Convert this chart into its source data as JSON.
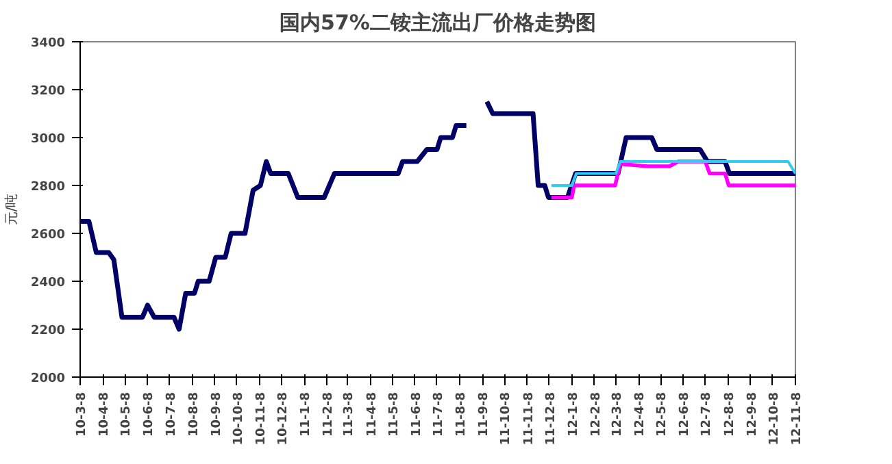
{
  "chart_data": {
    "type": "line",
    "title": "国内57%二铵主流出厂价格走势图",
    "ylabel": "元/吨",
    "xlim": [
      "2010-03-08",
      "2012-11-08"
    ],
    "xticks": [
      {
        "value": "2010-03-08",
        "label": "10-3-8"
      },
      {
        "value": "2010-04-08",
        "label": "10-4-8"
      },
      {
        "value": "2010-05-08",
        "label": "10-5-8"
      },
      {
        "value": "2010-06-08",
        "label": "10-6-8"
      },
      {
        "value": "2010-07-08",
        "label": "10-7-8"
      },
      {
        "value": "2010-08-08",
        "label": "10-8-8"
      },
      {
        "value": "2010-09-08",
        "label": "10-9-8"
      },
      {
        "value": "2010-10-08",
        "label": "10-10-8"
      },
      {
        "value": "2010-11-08",
        "label": "10-11-8"
      },
      {
        "value": "2010-12-08",
        "label": "10-12-8"
      },
      {
        "value": "2011-01-08",
        "label": "11-1-8"
      },
      {
        "value": "2011-02-08",
        "label": "11-2-8"
      },
      {
        "value": "2011-03-08",
        "label": "11-3-8"
      },
      {
        "value": "2011-04-08",
        "label": "11-4-8"
      },
      {
        "value": "2011-05-08",
        "label": "11-5-8"
      },
      {
        "value": "2011-06-08",
        "label": "11-6-8"
      },
      {
        "value": "2011-07-08",
        "label": "11-7-8"
      },
      {
        "value": "2011-08-08",
        "label": "11-8-8"
      },
      {
        "value": "2011-09-08",
        "label": "11-9-8"
      },
      {
        "value": "2011-10-08",
        "label": "11-10-8"
      },
      {
        "value": "2011-11-08",
        "label": "11-11-8"
      },
      {
        "value": "2011-12-08",
        "label": "11-12-8"
      },
      {
        "value": "2012-01-08",
        "label": "12-1-8"
      },
      {
        "value": "2012-02-08",
        "label": "12-2-8"
      },
      {
        "value": "2012-03-08",
        "label": "12-3-8"
      },
      {
        "value": "2012-04-08",
        "label": "12-4-8"
      },
      {
        "value": "2012-05-08",
        "label": "12-5-8"
      },
      {
        "value": "2012-06-08",
        "label": "12-6-8"
      },
      {
        "value": "2012-07-08",
        "label": "12-7-8"
      },
      {
        "value": "2012-08-08",
        "label": "12-8-8"
      },
      {
        "value": "2012-09-08",
        "label": "12-9-8"
      },
      {
        "value": "2012-10-08",
        "label": "12-10-8"
      },
      {
        "value": "2012-11-08",
        "label": "12-11-8"
      }
    ],
    "ylim": [
      2000,
      3400
    ],
    "yticks": [
      2000,
      2200,
      2400,
      2600,
      2800,
      3000,
      3200,
      3400
    ],
    "grid": false,
    "line_style": "solid",
    "marker": "none",
    "series": [
      {
        "color": "#000066",
        "x": [
          "2010-03-08",
          "2010-03-20",
          "2010-03-30",
          "2010-04-16",
          "2010-04-23",
          "2010-05-04",
          "2010-06-01",
          "2010-06-08",
          "2010-06-17",
          "2010-07-14",
          "2010-07-21",
          "2010-07-30",
          "2010-08-11",
          "2010-08-16",
          "2010-08-31",
          "2010-09-09",
          "2010-09-22",
          "2010-09-30",
          "2010-10-19",
          "2010-10-30",
          "2010-11-09",
          "2010-11-17",
          "2010-11-23",
          "2010-12-17",
          "2010-12-30",
          "2011-02-04",
          "2011-02-18",
          "2011-05-16",
          "2011-05-22",
          "2011-06-11",
          "2011-06-24",
          "2011-07-08",
          "2011-07-13",
          "2011-07-29",
          "2011-08-03",
          "2011-08-17",
          "2011-09-01",
          "2011-09-14",
          "2011-09-22",
          "2011-11-16",
          "2011-11-23",
          "2011-12-02",
          "2011-12-07",
          "2012-01-02",
          "2012-01-13",
          "2012-03-11",
          "2012-03-22",
          "2012-04-26",
          "2012-05-03",
          "2012-07-01",
          "2012-07-11",
          "2012-08-04",
          "2012-08-10",
          "2012-11-08"
        ],
        "values": [
          2650,
          2650,
          2520,
          2520,
          2490,
          2250,
          2250,
          2300,
          2250,
          2250,
          2200,
          2350,
          2350,
          2400,
          2400,
          2500,
          2500,
          2600,
          2600,
          2780,
          2800,
          2900,
          2850,
          2850,
          2750,
          2750,
          2850,
          2850,
          2900,
          2900,
          2950,
          2950,
          3000,
          3000,
          3050,
          3050,
          null,
          3150,
          3100,
          3100,
          2800,
          2800,
          2750,
          2750,
          2850,
          2850,
          3000,
          3000,
          2950,
          2950,
          2900,
          2900,
          2850,
          2850
        ]
      },
      {
        "color": "#ff00ff",
        "x": [
          "2011-12-11",
          "2012-01-08",
          "2012-01-11",
          "2012-03-07",
          "2012-03-14",
          "2012-04-20",
          "2012-05-20",
          "2012-06-01",
          "2012-07-08",
          "2012-07-14",
          "2012-08-04",
          "2012-08-09",
          "2012-11-08"
        ],
        "values": [
          2750,
          2750,
          2800,
          2800,
          2890,
          2880,
          2880,
          2900,
          2900,
          2850,
          2850,
          2800,
          2800
        ]
      },
      {
        "color": "#33ccee",
        "x": [
          "2011-12-11",
          "2012-01-08",
          "2012-01-14",
          "2012-03-08",
          "2012-03-14",
          "2012-10-29",
          "2012-11-08"
        ],
        "values": [
          2800,
          2800,
          2850,
          2850,
          2900,
          2900,
          2850
        ]
      }
    ]
  }
}
